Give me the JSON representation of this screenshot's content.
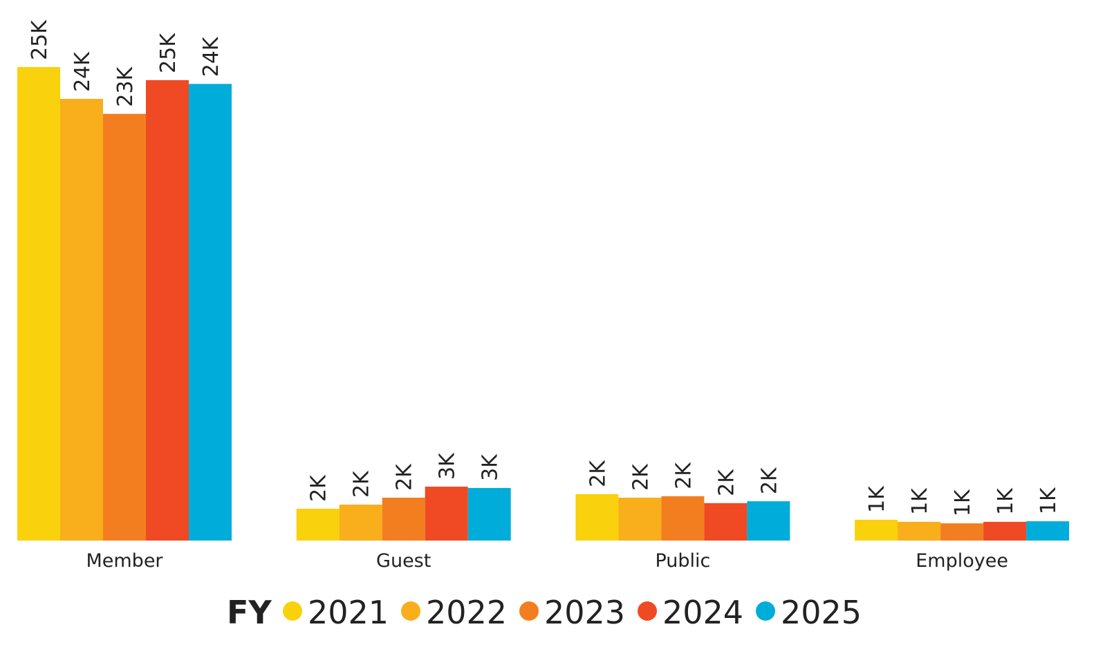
{
  "chart_data": {
    "type": "bar",
    "legend_title": "FY",
    "categories": [
      "Member",
      "Guest",
      "Public",
      "Employee"
    ],
    "series": [
      {
        "name": "2021",
        "color": "#F9D10C",
        "values": [
          25300,
          1700,
          2480,
          1110
        ],
        "value_labels": [
          "25K",
          "2K",
          "2K",
          "1K"
        ]
      },
      {
        "name": "2022",
        "color": "#F9AE1B",
        "values": [
          23600,
          1920,
          2290,
          1000
        ],
        "value_labels": [
          "24K",
          "2K",
          "2K",
          "1K"
        ]
      },
      {
        "name": "2023",
        "color": "#F37E20",
        "values": [
          22800,
          2290,
          2370,
          920
        ],
        "value_labels": [
          "23K",
          "2K",
          "2K",
          "1K"
        ]
      },
      {
        "name": "2024",
        "color": "#EF4A23",
        "values": [
          24600,
          2880,
          2000,
          1000
        ],
        "value_labels": [
          "25K",
          "3K",
          "2K",
          "1K"
        ]
      },
      {
        "name": "2025",
        "color": "#00ACDA",
        "values": [
          24400,
          2810,
          2100,
          1030
        ],
        "value_labels": [
          "24K",
          "3K",
          "2K",
          "1K"
        ]
      }
    ],
    "legend": "bottom"
  }
}
